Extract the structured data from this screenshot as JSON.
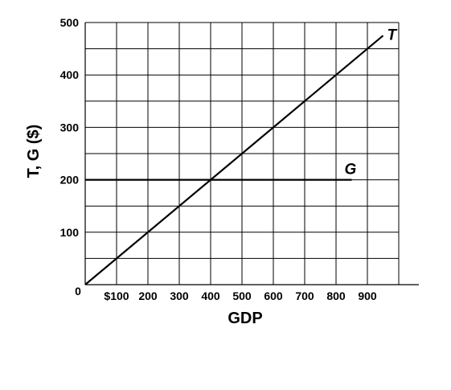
{
  "chart_data": {
    "type": "line",
    "xlabel": "GDP",
    "ylabel": "T, G ($)",
    "xlim": [
      0,
      1000
    ],
    "ylim": [
      0,
      500
    ],
    "grid": true,
    "origin_label": "0",
    "x_ticks": [
      {
        "value": 100,
        "label": "$100"
      },
      {
        "value": 200,
        "label": "200"
      },
      {
        "value": 300,
        "label": "300"
      },
      {
        "value": 400,
        "label": "400"
      },
      {
        "value": 500,
        "label": "500"
      },
      {
        "value": 600,
        "label": "600"
      },
      {
        "value": 700,
        "label": "700"
      },
      {
        "value": 800,
        "label": "800"
      },
      {
        "value": 900,
        "label": "900"
      }
    ],
    "y_ticks": [
      {
        "value": 100,
        "label": "100"
      },
      {
        "value": 200,
        "label": "200"
      },
      {
        "value": 300,
        "label": "300"
      },
      {
        "value": 400,
        "label": "400"
      },
      {
        "value": 500,
        "label": "500"
      }
    ],
    "series": [
      {
        "name": "T",
        "x": [
          0,
          950
        ],
        "y": [
          0,
          475
        ]
      },
      {
        "name": "G",
        "x": [
          0,
          850
        ],
        "y": [
          200,
          200
        ]
      }
    ]
  }
}
